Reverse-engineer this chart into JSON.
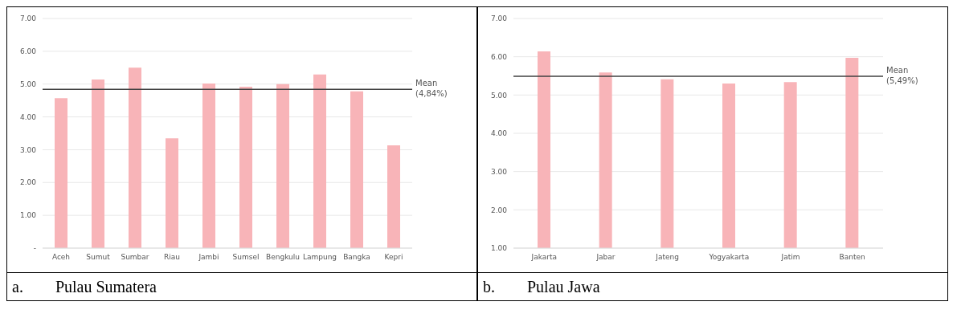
{
  "chart_data": [
    {
      "type": "bar",
      "title": "a.        Pulau Sumatera",
      "categories": [
        "Aceh",
        "Sumut",
        "Sumbar",
        "Riau",
        "Jambi",
        "Sumsel",
        "Bengkulu",
        "Lampung",
        "Bangka",
        "Kepri"
      ],
      "values": [
        4.57,
        5.14,
        5.5,
        3.35,
        5.02,
        4.92,
        5.0,
        5.29,
        4.78,
        3.13
      ],
      "color": "#f8b4b8",
      "ylim": [
        0,
        7
      ],
      "yticks": [
        {
          "value": 0,
          "label": "-"
        },
        {
          "value": 1,
          "label": "1.00"
        },
        {
          "value": 2,
          "label": "2.00"
        },
        {
          "value": 3,
          "label": "3.00"
        },
        {
          "value": 4,
          "label": "4.00"
        },
        {
          "value": 5,
          "label": "5.00"
        },
        {
          "value": 6,
          "label": "6.00"
        },
        {
          "value": 7,
          "label": "7.00"
        }
      ],
      "grid": "y",
      "ref_lines": [
        {
          "axis": "y",
          "value": 4.84,
          "label": "Mean (4,84%)",
          "color": "#404040"
        }
      ]
    },
    {
      "type": "bar",
      "title": "b.        Pulau Jawa",
      "categories": [
        "Jakarta",
        "Jabar",
        "Jateng",
        "Yogyakarta",
        "Jatim",
        "Banten"
      ],
      "values": [
        6.14,
        5.59,
        5.41,
        5.3,
        5.34,
        5.97
      ],
      "color": "#f8b4b8",
      "ylim": [
        1,
        7
      ],
      "yticks": [
        {
          "value": 1,
          "label": "1.00"
        },
        {
          "value": 2,
          "label": "2.00"
        },
        {
          "value": 3,
          "label": "3.00"
        },
        {
          "value": 4,
          "label": "4.00"
        },
        {
          "value": 5,
          "label": "5.00"
        },
        {
          "value": 6,
          "label": "6.00"
        },
        {
          "value": 7,
          "label": "7.00"
        }
      ],
      "grid": "y",
      "ref_lines": [
        {
          "axis": "y",
          "value": 5.49,
          "label": "Mean (5,49%)",
          "color": "#404040"
        }
      ]
    }
  ]
}
